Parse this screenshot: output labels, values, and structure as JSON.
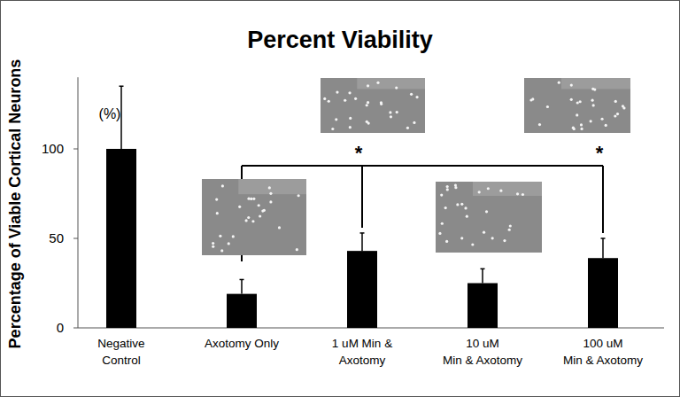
{
  "chart_data": {
    "type": "bar",
    "title": "Percent Viability",
    "y_label": "Percentage of Viable Cortical Neurons",
    "categories": [
      "Negative\nControl",
      "Axotomy Only",
      "1 uM Min &\nAxotomy",
      "10 uM\nMin & Axotomy",
      "100 uM\nMin & Axotomy"
    ],
    "values": [
      100,
      19,
      43,
      25,
      39
    ],
    "errors": [
      35,
      8,
      10,
      8,
      11
    ],
    "color": "#000000",
    "ylim": [
      0,
      140
    ],
    "yticks": [
      0,
      50,
      100
    ],
    "grid": false,
    "annotations": [
      {
        "text": "(%)"
      },
      {
        "text": "*",
        "from": 1,
        "to": 2
      },
      {
        "text": "*",
        "from": 1,
        "to": 4
      }
    ]
  }
}
